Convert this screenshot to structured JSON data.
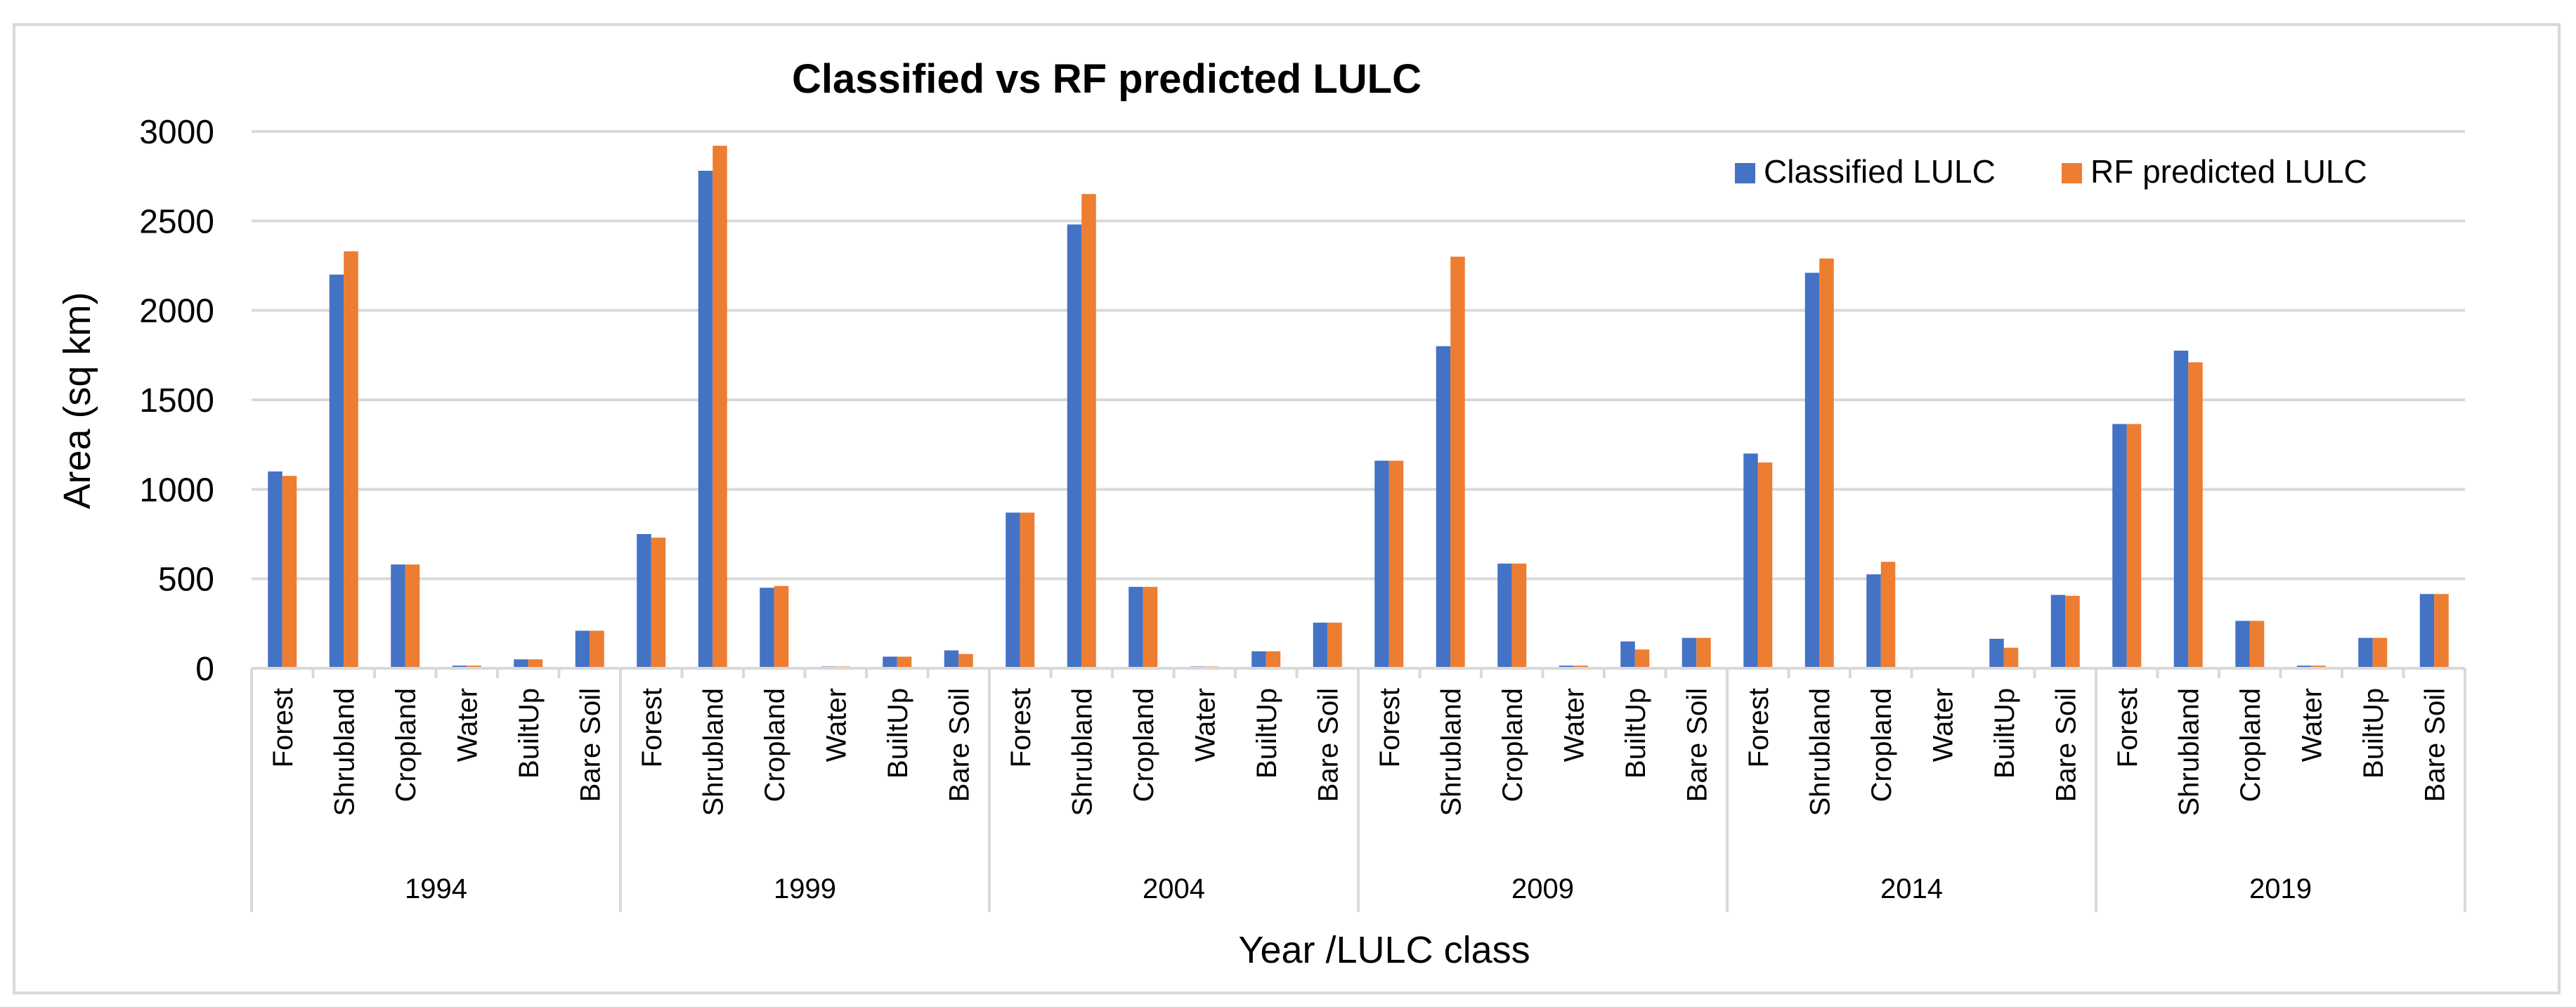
{
  "chart_data": {
    "type": "bar",
    "title": "Classified vs RF predicted LULC",
    "ylabel": "Area  (sq km)",
    "xlabel": "Year /LULC  class",
    "ylim": [
      0,
      3000
    ],
    "yticks": [
      0,
      500,
      1000,
      1500,
      2000,
      2500,
      3000
    ],
    "grid": true,
    "legend_position": "top-right",
    "groups": [
      "1994",
      "1999",
      "2004",
      "2009",
      "2014",
      "2019"
    ],
    "classes": [
      "Forest",
      "Shrubland",
      "Cropland",
      "Water",
      "BuiltUp",
      "Bare Soil"
    ],
    "series": [
      {
        "name": "Classified LULC",
        "color": "#4472C4",
        "values": [
          1100,
          2200,
          580,
          15,
          50,
          210,
          750,
          2780,
          450,
          10,
          65,
          100,
          870,
          2480,
          455,
          10,
          95,
          255,
          1160,
          1800,
          585,
          15,
          150,
          170,
          1200,
          2210,
          525,
          0,
          165,
          410,
          1365,
          1775,
          265,
          15,
          170,
          415
        ]
      },
      {
        "name": "RF predicted LULC",
        "color": "#ED7D31",
        "values": [
          1075,
          2330,
          580,
          15,
          50,
          210,
          730,
          2920,
          460,
          10,
          65,
          80,
          870,
          2650,
          455,
          10,
          95,
          255,
          1160,
          2300,
          585,
          15,
          105,
          170,
          1150,
          2290,
          595,
          0,
          115,
          405,
          1365,
          1710,
          265,
          15,
          170,
          415
        ]
      }
    ]
  }
}
